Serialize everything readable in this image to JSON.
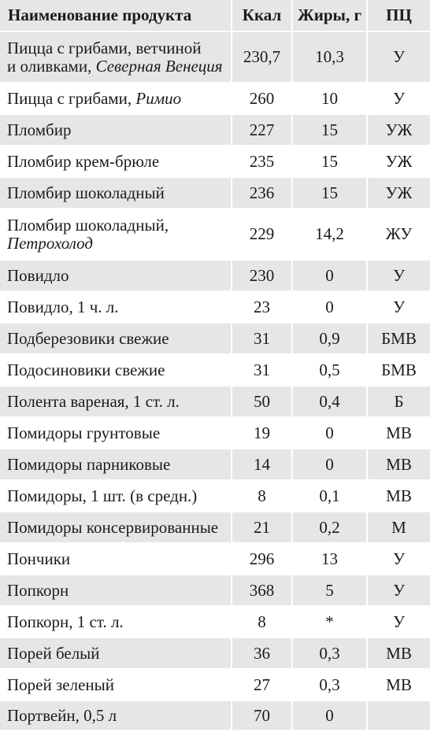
{
  "table": {
    "headers": {
      "name": "Наименование продукта",
      "kcal": "Ккал",
      "fat": "Жиры, г",
      "pc": "ПЦ"
    },
    "rows": [
      {
        "name": "Пицца с грибами, ветчиной",
        "name2": "и оливками, ",
        "brand": "Северная Венеция",
        "kcal": "230,7",
        "fat": "10,3",
        "pc": "У"
      },
      {
        "name": "Пицца с грибами, ",
        "brand": "Римио",
        "kcal": "260",
        "fat": "10",
        "pc": "У"
      },
      {
        "name": "Пломбир",
        "kcal": "227",
        "fat": "15",
        "pc": "УЖ"
      },
      {
        "name": "Пломбир крем-брюле",
        "kcal": "235",
        "fat": "15",
        "pc": "УЖ"
      },
      {
        "name": "Пломбир шоколадный",
        "kcal": "236",
        "fat": "15",
        "pc": "УЖ"
      },
      {
        "name": "Пломбир шоколадный,",
        "brand": "Петрохолод",
        "kcal": "229",
        "fat": "14,2",
        "pc": "ЖУ"
      },
      {
        "name": "Повидло",
        "kcal": "230",
        "fat": "0",
        "pc": "У"
      },
      {
        "name": "Повидло, 1 ч. л.",
        "kcal": "23",
        "fat": "0",
        "pc": "У"
      },
      {
        "name": "Подберезовики свежие",
        "kcal": "31",
        "fat": "0,9",
        "pc": "БМВ"
      },
      {
        "name": "Подосиновики свежие",
        "kcal": "31",
        "fat": "0,5",
        "pc": "БМВ"
      },
      {
        "name": "Полента вареная, 1 ст. л.",
        "kcal": "50",
        "fat": "0,4",
        "pc": "Б"
      },
      {
        "name": "Помидоры грунтовые",
        "kcal": "19",
        "fat": "0",
        "pc": "МВ"
      },
      {
        "name": "Помидоры парниковые",
        "kcal": "14",
        "fat": "0",
        "pc": "МВ"
      },
      {
        "name": "Помидоры, 1 шт. (в средн.)",
        "kcal": "8",
        "fat": "0,1",
        "pc": "МВ"
      },
      {
        "name": "Помидоры консервированные",
        "kcal": "21",
        "fat": "0,2",
        "pc": "М"
      },
      {
        "name": "Пончики",
        "kcal": "296",
        "fat": "13",
        "pc": "У"
      },
      {
        "name": "Попкорн",
        "kcal": "368",
        "fat": "5",
        "pc": "У"
      },
      {
        "name": "Попкорн, 1 ст. л.",
        "kcal": "8",
        "fat": "*",
        "pc": "У"
      },
      {
        "name": "Порей белый",
        "kcal": "36",
        "fat": "0,3",
        "pc": "МВ"
      },
      {
        "name": "Порей зеленый",
        "kcal": "27",
        "fat": "0,3",
        "pc": "МВ"
      },
      {
        "name": "Портвейн, 0,5 л",
        "kcal": "70",
        "fat": "0",
        "pc": ""
      }
    ]
  },
  "colors": {
    "band": "#e6e6e6",
    "background": "#ffffff",
    "text": "#1b1b1b"
  }
}
